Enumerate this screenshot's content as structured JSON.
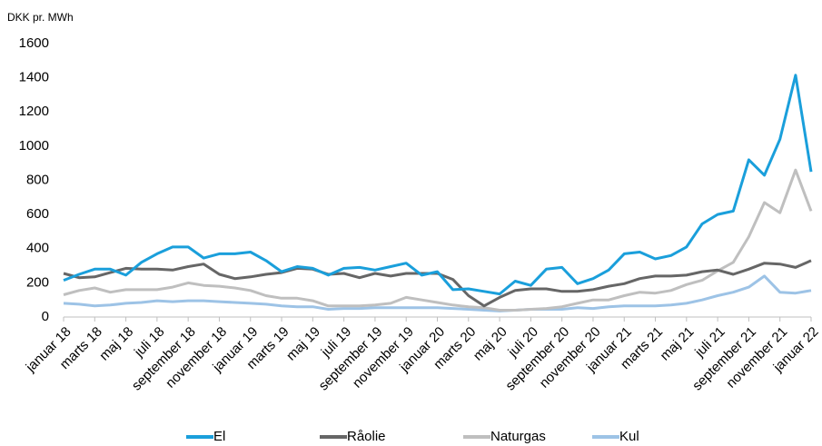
{
  "chart_data": {
    "type": "line",
    "y_label": "DKK pr. MWh",
    "categories": [
      "januar 18",
      null,
      "marts 18",
      null,
      "maj 18",
      null,
      "juli 18",
      null,
      "september 18",
      null,
      "november 18",
      null,
      "januar 19",
      null,
      "marts 19",
      null,
      "maj 19",
      null,
      "juli 19",
      null,
      "september 19",
      null,
      "november 19",
      null,
      "januar 20",
      null,
      "marts 20",
      null,
      "maj 20",
      null,
      "juli 20",
      null,
      "september 20",
      null,
      "november 20",
      null,
      "januar 21",
      null,
      "marts 21",
      null,
      "maj 21",
      null,
      "juli 21",
      null,
      "september 21",
      null,
      "november 21",
      null,
      "januar 22"
    ],
    "series": [
      {
        "name": "El",
        "color": "#1a9fdb",
        "values": [
          215,
          250,
          280,
          280,
          245,
          320,
          370,
          410,
          410,
          345,
          370,
          370,
          380,
          330,
          265,
          295,
          285,
          245,
          285,
          290,
          275,
          295,
          315,
          245,
          265,
          160,
          165,
          150,
          135,
          210,
          185,
          280,
          290,
          195,
          225,
          275,
          370,
          380,
          340,
          360,
          410,
          545,
          600,
          620,
          920,
          830,
          1040,
          1415,
          850
        ]
      },
      {
        "name": "Råolie",
        "color": "#666666",
        "values": [
          255,
          230,
          235,
          260,
          285,
          280,
          280,
          275,
          295,
          310,
          250,
          225,
          235,
          250,
          260,
          285,
          280,
          250,
          255,
          230,
          255,
          240,
          255,
          255,
          255,
          220,
          125,
          65,
          115,
          155,
          165,
          165,
          150,
          150,
          160,
          180,
          195,
          225,
          240,
          240,
          245,
          265,
          275,
          250,
          280,
          315,
          310,
          290,
          330
        ]
      },
      {
        "name": "Naturgas",
        "color": "#bfbfbf",
        "values": [
          130,
          155,
          170,
          145,
          160,
          160,
          160,
          175,
          200,
          185,
          180,
          170,
          155,
          125,
          110,
          110,
          95,
          65,
          65,
          65,
          70,
          80,
          115,
          100,
          85,
          70,
          60,
          55,
          40,
          40,
          45,
          50,
          60,
          80,
          100,
          100,
          125,
          145,
          140,
          155,
          190,
          215,
          270,
          320,
          470,
          670,
          610,
          860,
          620
        ]
      },
      {
        "name": "Kul",
        "color": "#9dc3e6",
        "values": [
          80,
          75,
          65,
          70,
          80,
          85,
          95,
          90,
          95,
          95,
          90,
          85,
          80,
          75,
          65,
          60,
          60,
          45,
          50,
          50,
          55,
          55,
          55,
          55,
          55,
          50,
          45,
          40,
          35,
          40,
          45,
          45,
          45,
          55,
          50,
          60,
          65,
          65,
          65,
          70,
          80,
          100,
          125,
          145,
          175,
          240,
          145,
          140,
          155
        ]
      }
    ],
    "ylim": [
      0,
      1600
    ],
    "yticks": [
      0,
      200,
      400,
      600,
      800,
      1000,
      1200,
      1400,
      1600
    ],
    "grid": false,
    "legend": "bottom"
  }
}
